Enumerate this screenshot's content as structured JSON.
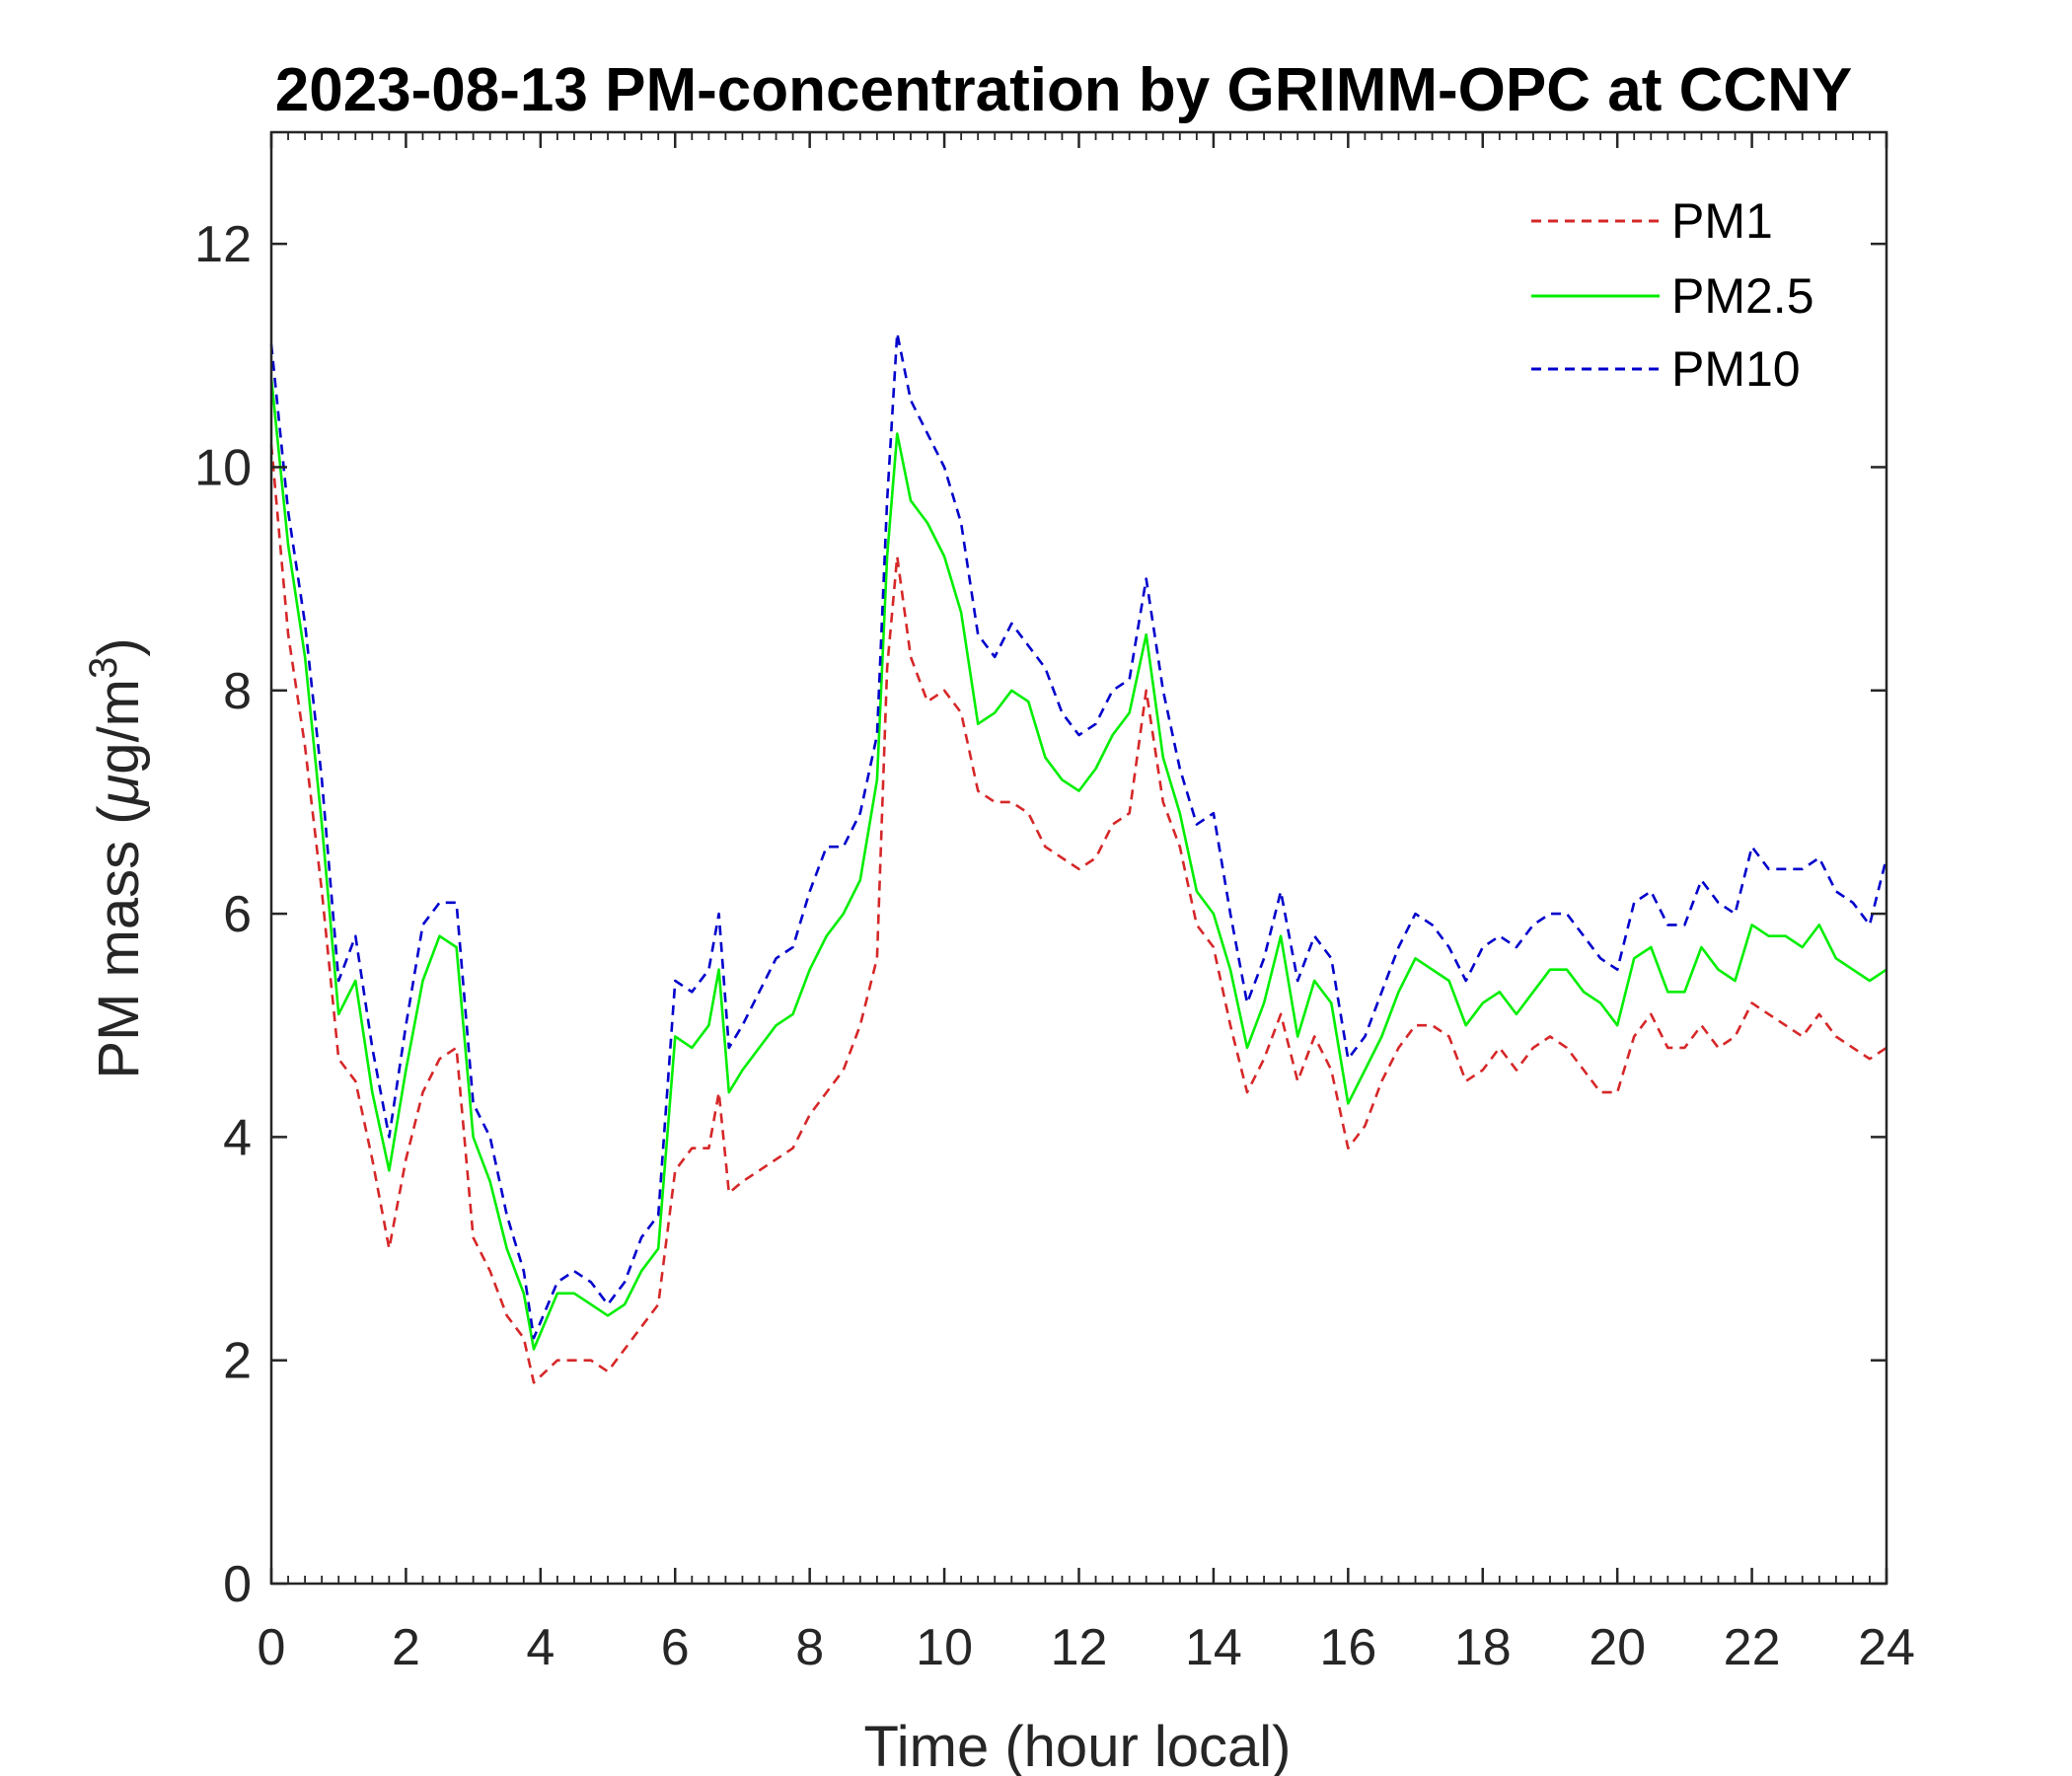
{
  "chart_data": {
    "type": "line",
    "title": "2023-08-13 PM-concentration by GRIMM-OPC at CCNY",
    "xlabel": "Time (hour local)",
    "ylabel": {
      "prefix": "PM mass (",
      "mu": "μ",
      "unit": "g/m",
      "superscript": "3",
      "suffix": ")"
    },
    "xlim": [
      0,
      24
    ],
    "ylim": [
      0,
      13
    ],
    "x_ticks": [
      0,
      2,
      4,
      6,
      8,
      10,
      12,
      14,
      16,
      18,
      20,
      22,
      24
    ],
    "x_tick_labels": [
      "0",
      "2",
      "4",
      "6",
      "8",
      "10",
      "12",
      "14",
      "16",
      "18",
      "20",
      "22",
      "24"
    ],
    "y_ticks": [
      0,
      2,
      4,
      6,
      8,
      10,
      12
    ],
    "y_tick_labels": [
      "0",
      "2",
      "4",
      "6",
      "8",
      "10",
      "12"
    ],
    "legend_position": "top-right",
    "series": [
      {
        "name": "PM1",
        "color": "#d62728",
        "style": "dashed",
        "x": [
          0,
          0.25,
          0.5,
          0.75,
          1.0,
          1.25,
          1.5,
          1.75,
          2.0,
          2.25,
          2.5,
          2.75,
          3.0,
          3.25,
          3.5,
          3.75,
          3.9,
          4.25,
          4.5,
          4.75,
          5.0,
          5.25,
          5.5,
          5.75,
          6.0,
          6.25,
          6.5,
          6.65,
          6.8,
          7.0,
          7.25,
          7.5,
          7.75,
          8.0,
          8.25,
          8.5,
          8.75,
          9.0,
          9.15,
          9.3,
          9.5,
          9.75,
          10.0,
          10.25,
          10.5,
          10.75,
          11.0,
          11.25,
          11.5,
          11.75,
          12.0,
          12.25,
          12.5,
          12.75,
          13.0,
          13.25,
          13.5,
          13.75,
          14.0,
          14.25,
          14.5,
          14.75,
          15.0,
          15.25,
          15.5,
          15.75,
          16.0,
          16.25,
          16.5,
          16.75,
          17.0,
          17.25,
          17.5,
          17.75,
          18.0,
          18.25,
          18.5,
          18.75,
          19.0,
          19.25,
          19.5,
          19.75,
          20.0,
          20.25,
          20.5,
          20.75,
          21.0,
          21.25,
          21.5,
          21.75,
          22.0,
          22.25,
          22.5,
          22.75,
          23.0,
          23.25,
          23.5,
          23.75,
          24.0
        ],
        "values": [
          10.2,
          8.5,
          7.5,
          6.2,
          4.7,
          4.5,
          3.8,
          3.0,
          3.8,
          4.4,
          4.7,
          4.8,
          3.1,
          2.8,
          2.4,
          2.2,
          1.8,
          2.0,
          2.0,
          2.0,
          1.9,
          2.1,
          2.3,
          2.5,
          3.7,
          3.9,
          3.9,
          4.4,
          3.5,
          3.6,
          3.7,
          3.8,
          3.9,
          4.2,
          4.4,
          4.6,
          5.0,
          5.6,
          8.2,
          9.2,
          8.3,
          7.9,
          8.0,
          7.8,
          7.1,
          7.0,
          7.0,
          6.9,
          6.6,
          6.5,
          6.4,
          6.5,
          6.8,
          6.9,
          8.0,
          7.0,
          6.6,
          5.9,
          5.7,
          5.0,
          4.4,
          4.7,
          5.1,
          4.5,
          4.9,
          4.6,
          3.9,
          4.1,
          4.5,
          4.8,
          5.0,
          5.0,
          4.9,
          4.5,
          4.6,
          4.8,
          4.6,
          4.8,
          4.9,
          4.8,
          4.6,
          4.4,
          4.4,
          4.9,
          5.1,
          4.8,
          4.8,
          5.0,
          4.8,
          4.9,
          5.2,
          5.1,
          5.0,
          4.9,
          5.1,
          4.9,
          4.8,
          4.7,
          4.8
        ]
      },
      {
        "name": "PM2.5",
        "color": "#00ee00",
        "style": "solid",
        "x": [
          0,
          0.25,
          0.5,
          0.75,
          1.0,
          1.25,
          1.5,
          1.75,
          2.0,
          2.25,
          2.5,
          2.75,
          3.0,
          3.25,
          3.5,
          3.75,
          3.9,
          4.25,
          4.5,
          4.75,
          5.0,
          5.25,
          5.5,
          5.75,
          6.0,
          6.25,
          6.5,
          6.65,
          6.8,
          7.0,
          7.25,
          7.5,
          7.75,
          8.0,
          8.25,
          8.5,
          8.75,
          9.0,
          9.15,
          9.3,
          9.5,
          9.75,
          10.0,
          10.25,
          10.5,
          10.75,
          11.0,
          11.25,
          11.5,
          11.75,
          12.0,
          12.25,
          12.5,
          12.75,
          13.0,
          13.25,
          13.5,
          13.75,
          14.0,
          14.25,
          14.5,
          14.75,
          15.0,
          15.25,
          15.5,
          15.75,
          16.0,
          16.25,
          16.5,
          16.75,
          17.0,
          17.25,
          17.5,
          17.75,
          18.0,
          18.25,
          18.5,
          18.75,
          19.0,
          19.25,
          19.5,
          19.75,
          20.0,
          20.25,
          20.5,
          20.75,
          21.0,
          21.25,
          21.5,
          21.75,
          22.0,
          22.25,
          22.5,
          22.75,
          23.0,
          23.25,
          23.5,
          23.75,
          24.0
        ],
        "values": [
          10.8,
          9.3,
          8.3,
          6.8,
          5.1,
          5.4,
          4.4,
          3.7,
          4.6,
          5.4,
          5.8,
          5.7,
          4.0,
          3.6,
          3.0,
          2.6,
          2.1,
          2.6,
          2.6,
          2.5,
          2.4,
          2.5,
          2.8,
          3.0,
          4.9,
          4.8,
          5.0,
          5.5,
          4.4,
          4.6,
          4.8,
          5.0,
          5.1,
          5.5,
          5.8,
          6.0,
          6.3,
          7.2,
          9.2,
          10.3,
          9.7,
          9.5,
          9.2,
          8.7,
          7.7,
          7.8,
          8.0,
          7.9,
          7.4,
          7.2,
          7.1,
          7.3,
          7.6,
          7.8,
          8.5,
          7.4,
          6.9,
          6.2,
          6.0,
          5.5,
          4.8,
          5.2,
          5.8,
          4.9,
          5.4,
          5.2,
          4.3,
          4.6,
          4.9,
          5.3,
          5.6,
          5.5,
          5.4,
          5.0,
          5.2,
          5.3,
          5.1,
          5.3,
          5.5,
          5.5,
          5.3,
          5.2,
          5.0,
          5.6,
          5.7,
          5.3,
          5.3,
          5.7,
          5.5,
          5.4,
          5.9,
          5.8,
          5.8,
          5.7,
          5.9,
          5.6,
          5.5,
          5.4,
          5.5
        ]
      },
      {
        "name": "PM10",
        "color": "#0000cc",
        "style": "dashed",
        "x": [
          0,
          0.25,
          0.5,
          0.75,
          1.0,
          1.25,
          1.5,
          1.75,
          2.0,
          2.25,
          2.5,
          2.75,
          3.0,
          3.25,
          3.5,
          3.75,
          3.9,
          4.25,
          4.5,
          4.75,
          5.0,
          5.25,
          5.5,
          5.75,
          6.0,
          6.25,
          6.5,
          6.65,
          6.8,
          7.0,
          7.25,
          7.5,
          7.75,
          8.0,
          8.25,
          8.5,
          8.75,
          9.0,
          9.15,
          9.3,
          9.5,
          9.75,
          10.0,
          10.25,
          10.5,
          10.75,
          11.0,
          11.25,
          11.5,
          11.75,
          12.0,
          12.25,
          12.5,
          12.75,
          13.0,
          13.25,
          13.5,
          13.75,
          14.0,
          14.25,
          14.5,
          14.75,
          15.0,
          15.25,
          15.5,
          15.75,
          16.0,
          16.25,
          16.5,
          16.75,
          17.0,
          17.25,
          17.5,
          17.75,
          18.0,
          18.25,
          18.5,
          18.75,
          19.0,
          19.25,
          19.5,
          19.75,
          20.0,
          20.25,
          20.5,
          20.75,
          21.0,
          21.25,
          21.5,
          21.75,
          22.0,
          22.25,
          22.5,
          22.75,
          23.0,
          23.25,
          23.5,
          23.75,
          24.0
        ],
        "values": [
          11.1,
          9.6,
          8.6,
          7.2,
          5.4,
          5.8,
          4.8,
          4.0,
          5.0,
          5.9,
          6.1,
          6.1,
          4.3,
          4.0,
          3.3,
          2.8,
          2.2,
          2.7,
          2.8,
          2.7,
          2.5,
          2.7,
          3.1,
          3.3,
          5.4,
          5.3,
          5.5,
          6.0,
          4.8,
          5.0,
          5.3,
          5.6,
          5.7,
          6.2,
          6.6,
          6.6,
          6.9,
          7.6,
          9.7,
          11.2,
          10.6,
          10.3,
          10.0,
          9.5,
          8.5,
          8.3,
          8.6,
          8.4,
          8.2,
          7.8,
          7.6,
          7.7,
          8.0,
          8.1,
          9.0,
          8.0,
          7.3,
          6.8,
          6.9,
          6.0,
          5.2,
          5.6,
          6.2,
          5.4,
          5.8,
          5.6,
          4.7,
          4.9,
          5.3,
          5.7,
          6.0,
          5.9,
          5.7,
          5.4,
          5.7,
          5.8,
          5.7,
          5.9,
          6.0,
          6.0,
          5.8,
          5.6,
          5.5,
          6.1,
          6.2,
          5.9,
          5.9,
          6.3,
          6.1,
          6.0,
          6.6,
          6.4,
          6.4,
          6.4,
          6.5,
          6.2,
          6.1,
          5.9,
          6.5
        ]
      }
    ]
  }
}
